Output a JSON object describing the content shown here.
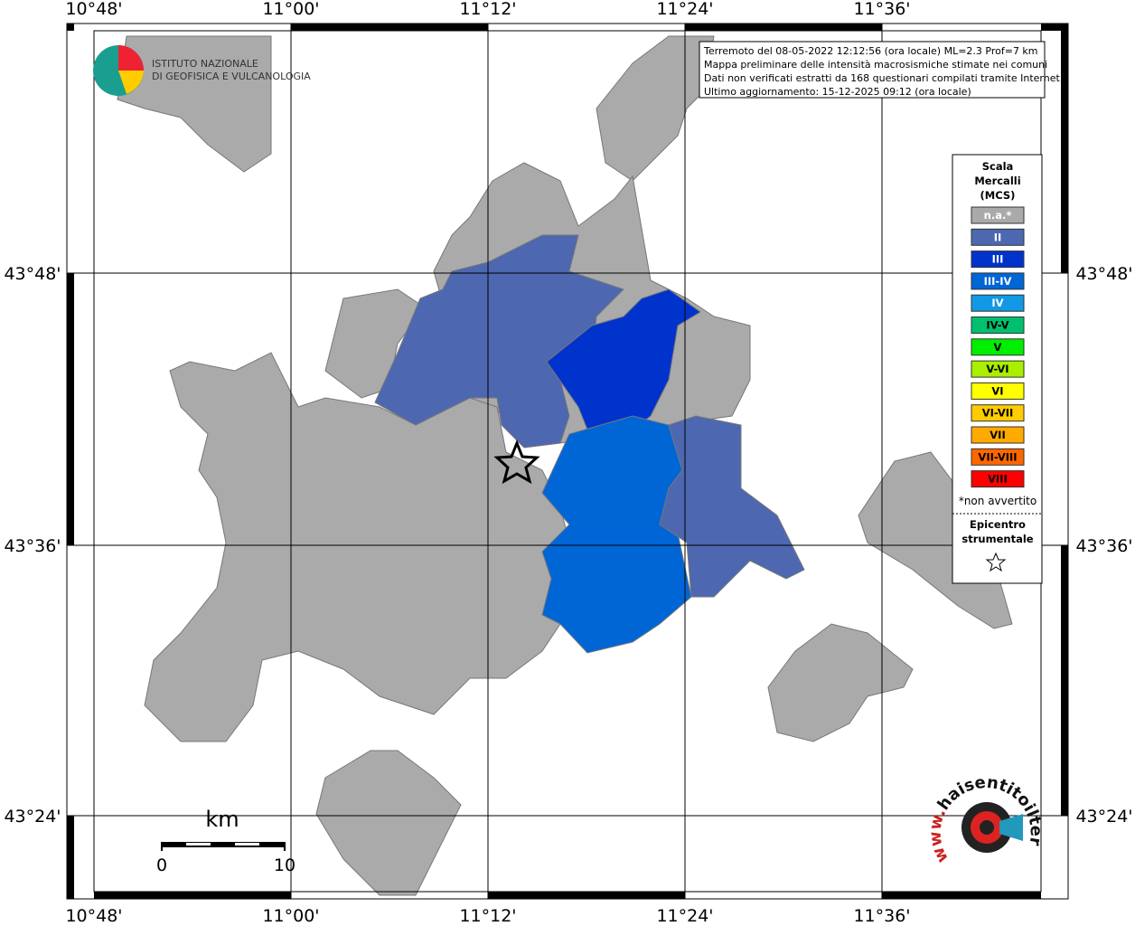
{
  "map": {
    "lon_labels": [
      "10°48'",
      "11°00'",
      "11°12'",
      "11°24'",
      "11°36'"
    ],
    "lat_labels": [
      "43°48'",
      "43°36'",
      "43°24'"
    ],
    "logo": {
      "line1": "ISTITUTO NAZIONALE",
      "line2": "DI GEOFISICA E VULCANOLOGIA"
    },
    "info": [
      "Terremoto del 08-05-2022 12:12:56 (ora locale) ML=2.3 Prof=7 km",
      "Mappa preliminare delle intensità macrosismiche stimate nei comuni",
      "Dati non verificati estratti da 168 questionari compilati tramite Internet.",
      "Ultimo aggiornamento: 15-12-2025 09:12 (ora locale)"
    ],
    "legend": {
      "title": [
        "Scala",
        "Mercalli",
        "(MCS)"
      ],
      "items": [
        {
          "label": "n.a.*",
          "color": "#aaaaaa"
        },
        {
          "label": "II",
          "color": "#4d68b0"
        },
        {
          "label": "III",
          "color": "#0033cc"
        },
        {
          "label": "III-IV",
          "color": "#0066d6"
        },
        {
          "label": "IV",
          "color": "#1199e6"
        },
        {
          "label": "IV-V",
          "color": "#00c070"
        },
        {
          "label": "V",
          "color": "#00ee00"
        },
        {
          "label": "V-VI",
          "color": "#aaee00"
        },
        {
          "label": "VI",
          "color": "#ffff00"
        },
        {
          "label": "VI-VII",
          "color": "#ffcc00"
        },
        {
          "label": "VII",
          "color": "#ffaa00"
        },
        {
          "label": "VII-VIII",
          "color": "#ff6600"
        },
        {
          "label": "VIII",
          "color": "#ff0000"
        }
      ],
      "note": "*non avvertito",
      "epicenter": [
        "Epicentro",
        "strumentale"
      ]
    },
    "scale": {
      "unit": "km",
      "start": "0",
      "end": "10"
    },
    "site": {
      "name": "haisentitoilterremoto.it",
      "prefix": "www."
    }
  }
}
